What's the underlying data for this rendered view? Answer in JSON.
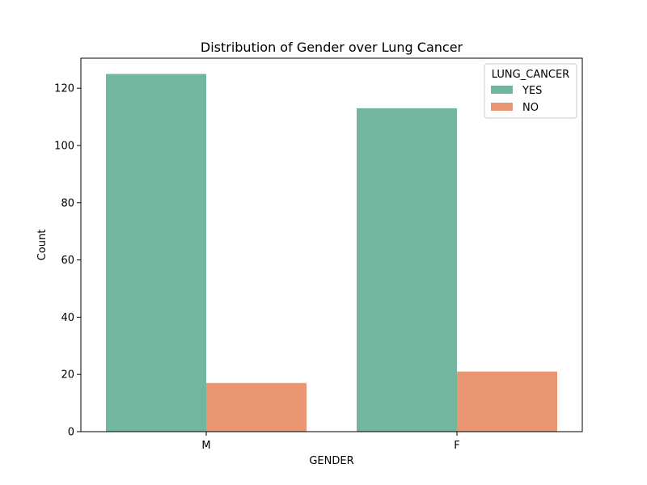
{
  "chart_data": {
    "type": "bar",
    "title": "Distribution of Gender over Lung Cancer",
    "xlabel": "GENDER",
    "ylabel": "Count",
    "categories": [
      "M",
      "F"
    ],
    "series": [
      {
        "name": "YES",
        "values": [
          125,
          113
        ],
        "color": "#72b6a0"
      },
      {
        "name": "NO",
        "values": [
          17,
          21
        ],
        "color": "#e99675"
      }
    ],
    "ylim": [
      0,
      130.5
    ],
    "yticks": [
      0,
      20,
      40,
      60,
      80,
      100,
      120
    ],
    "grid": false,
    "legend": {
      "title": "LUNG_CANCER",
      "placement": "top-right"
    }
  }
}
